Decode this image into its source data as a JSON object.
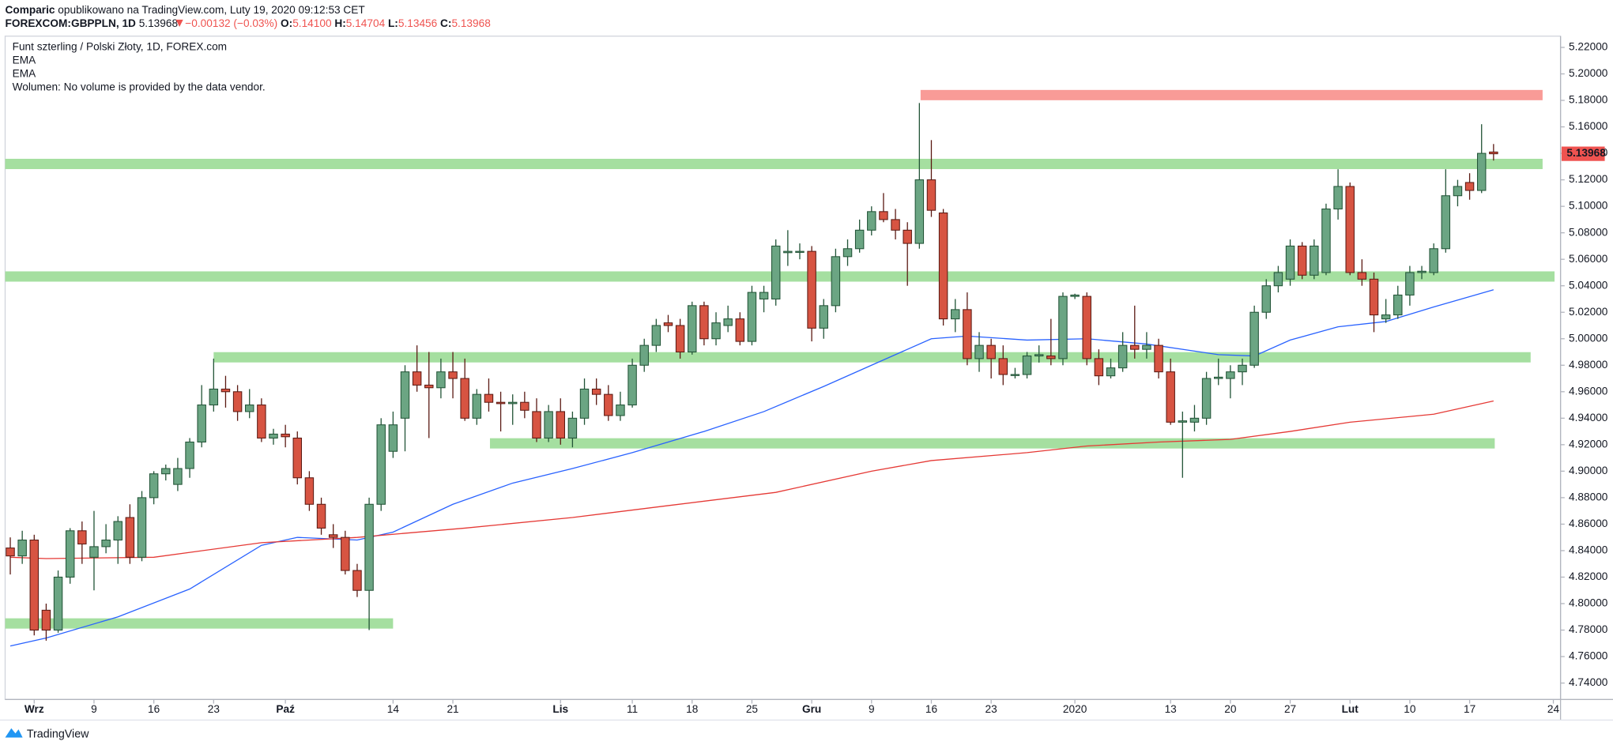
{
  "header": {
    "author": "Comparic",
    "published": "opublikowano na TradingView.com, Luty 19, 2020 09:12:53 CET",
    "symbol": "FOREXCOM:GBPPLN, 1D",
    "last": "5.13968",
    "change": "−0.00132 (−0.03%)",
    "o_label": "O:",
    "o": "5.14100",
    "h_label": "H:",
    "h": "5.14704",
    "l_label": "L:",
    "l": "5.13456",
    "c_label": "C:",
    "c": "5.13968"
  },
  "footer": "TradingView",
  "chart_data": {
    "type": "candlestick",
    "legend_title": "Funt szterling / Polski Złoty, 1D, FOREX.com",
    "volume_note": "Wolumen: No volume is provided by the data vendor.",
    "up_color": "#6ba583",
    "down_color": "#d75442",
    "xlim": [
      -0.43,
      129.6
    ],
    "ylim": [
      4.7276,
      5.2285
    ],
    "yticks": [
      {
        "value": 4.74,
        "label": "4.74000"
      },
      {
        "value": 4.76,
        "label": "4.76000"
      },
      {
        "value": 4.78,
        "label": "4.78000"
      },
      {
        "value": 4.8,
        "label": "4.80000"
      },
      {
        "value": 4.82,
        "label": "4.82000"
      },
      {
        "value": 4.84,
        "label": "4.84000"
      },
      {
        "value": 4.86,
        "label": "4.86000"
      },
      {
        "value": 4.88,
        "label": "4.88000"
      },
      {
        "value": 4.9,
        "label": "4.90000"
      },
      {
        "value": 4.92,
        "label": "4.92000"
      },
      {
        "value": 4.94,
        "label": "4.94000"
      },
      {
        "value": 4.96,
        "label": "4.96000"
      },
      {
        "value": 4.98,
        "label": "4.98000"
      },
      {
        "value": 5.0,
        "label": "5.00000"
      },
      {
        "value": 5.02,
        "label": "5.02000"
      },
      {
        "value": 5.04,
        "label": "5.04000"
      },
      {
        "value": 5.06,
        "label": "5.06000"
      },
      {
        "value": 5.08,
        "label": "5.08000"
      },
      {
        "value": 5.1,
        "label": "5.10000"
      },
      {
        "value": 5.12,
        "label": "5.12000"
      },
      {
        "value": 5.14,
        "label": "5.14000"
      },
      {
        "value": 5.16,
        "label": "5.16000"
      },
      {
        "value": 5.18,
        "label": "5.18000"
      },
      {
        "value": 5.2,
        "label": "5.20000"
      },
      {
        "value": 5.22,
        "label": "5.22000"
      }
    ],
    "xticks": [
      {
        "value": 2,
        "label": "Wrz"
      },
      {
        "value": 7,
        "label": "9"
      },
      {
        "value": 12,
        "label": "16"
      },
      {
        "value": 17,
        "label": "23"
      },
      {
        "value": 23,
        "label": "Paź"
      },
      {
        "value": 32,
        "label": "14"
      },
      {
        "value": 37,
        "label": "21"
      },
      {
        "value": 46,
        "label": "Lis"
      },
      {
        "value": 52,
        "label": "11"
      },
      {
        "value": 57,
        "label": "18"
      },
      {
        "value": 62,
        "label": "25"
      },
      {
        "value": 67,
        "label": "Gru"
      },
      {
        "value": 72,
        "label": "9"
      },
      {
        "value": 77,
        "label": "16"
      },
      {
        "value": 82,
        "label": "23"
      },
      {
        "value": 89,
        "label": "2020"
      },
      {
        "value": 97,
        "label": "13"
      },
      {
        "value": 102,
        "label": "20"
      },
      {
        "value": 107,
        "label": "27"
      },
      {
        "value": 112,
        "label": "Lut"
      },
      {
        "value": 117,
        "label": "10"
      },
      {
        "value": 122,
        "label": "17"
      },
      {
        "value": 129,
        "label": "24"
      }
    ],
    "candles": [
      [
        4.842,
        4.85,
        4.822,
        4.836
      ],
      [
        4.836,
        4.855,
        4.83,
        4.848
      ],
      [
        4.848,
        4.852,
        4.776,
        4.78
      ],
      [
        4.795,
        4.8,
        4.772,
        4.78
      ],
      [
        4.78,
        4.825,
        4.778,
        4.82
      ],
      [
        4.82,
        4.857,
        4.815,
        4.855
      ],
      [
        4.855,
        4.862,
        4.83,
        4.845
      ],
      [
        4.835,
        4.87,
        4.81,
        4.843
      ],
      [
        4.843,
        4.86,
        4.838,
        4.848
      ],
      [
        4.848,
        4.866,
        4.83,
        4.862
      ],
      [
        4.865,
        4.875,
        4.83,
        4.835
      ],
      [
        4.835,
        4.885,
        4.832,
        4.88
      ],
      [
        4.88,
        4.9,
        4.875,
        4.898
      ],
      [
        4.898,
        4.905,
        4.893,
        4.902
      ],
      [
        4.89,
        4.91,
        4.885,
        4.902
      ],
      [
        4.902,
        4.925,
        4.895,
        4.922
      ],
      [
        4.922,
        4.965,
        4.918,
        4.95
      ],
      [
        4.95,
        4.985,
        4.945,
        4.962
      ],
      [
        4.962,
        4.972,
        4.948,
        4.96
      ],
      [
        4.96,
        4.965,
        4.938,
        4.945
      ],
      [
        4.945,
        4.962,
        4.94,
        4.95
      ],
      [
        4.95,
        4.955,
        4.922,
        4.925
      ],
      [
        4.925,
        4.932,
        4.92,
        4.928
      ],
      [
        4.928,
        4.935,
        4.918,
        4.926
      ],
      [
        4.925,
        4.93,
        4.89,
        4.895
      ],
      [
        4.895,
        4.9,
        4.87,
        4.875
      ],
      [
        4.875,
        4.88,
        4.852,
        4.857
      ],
      [
        4.852,
        4.86,
        4.842,
        4.85
      ],
      [
        4.85,
        4.855,
        4.822,
        4.825
      ],
      [
        4.825,
        4.83,
        4.805,
        4.81
      ],
      [
        4.81,
        4.88,
        4.78,
        4.875
      ],
      [
        4.875,
        4.94,
        4.87,
        4.935
      ],
      [
        4.915,
        4.945,
        4.91,
        4.935
      ],
      [
        4.94,
        4.98,
        4.915,
        4.975
      ],
      [
        4.975,
        4.995,
        4.96,
        4.965
      ],
      [
        4.965,
        4.99,
        4.925,
        4.963
      ],
      [
        4.963,
        4.985,
        4.955,
        4.975
      ],
      [
        4.975,
        4.99,
        4.955,
        4.97
      ],
      [
        4.97,
        4.985,
        4.938,
        4.94
      ],
      [
        4.94,
        4.962,
        4.935,
        4.958
      ],
      [
        4.958,
        4.97,
        4.945,
        4.952
      ],
      [
        4.952,
        4.96,
        4.93,
        4.951
      ],
      [
        4.951,
        4.958,
        4.935,
        4.952
      ],
      [
        4.952,
        4.96,
        4.94,
        4.946
      ],
      [
        4.945,
        4.955,
        4.922,
        4.925
      ],
      [
        4.925,
        4.95,
        4.922,
        4.945
      ],
      [
        4.945,
        4.955,
        4.92,
        4.925
      ],
      [
        4.925,
        4.945,
        4.918,
        4.94
      ],
      [
        4.94,
        4.97,
        4.935,
        4.962
      ],
      [
        4.962,
        4.97,
        4.95,
        4.958
      ],
      [
        4.958,
        4.965,
        4.938,
        4.942
      ],
      [
        4.942,
        4.96,
        4.938,
        4.95
      ],
      [
        4.95,
        4.985,
        4.948,
        4.98
      ],
      [
        4.98,
        5.0,
        4.975,
        4.995
      ],
      [
        4.995,
        5.015,
        4.99,
        5.01
      ],
      [
        5.012,
        5.018,
        5.005,
        5.01
      ],
      [
        5.01,
        5.015,
        4.985,
        4.99
      ],
      [
        4.99,
        5.028,
        4.988,
        5.025
      ],
      [
        5.025,
        5.028,
        4.995,
        5.0
      ],
      [
        5.0,
        5.02,
        4.995,
        5.012
      ],
      [
        5.01,
        5.025,
        5.005,
        5.015
      ],
      [
        5.015,
        5.02,
        4.995,
        4.998
      ],
      [
        4.998,
        5.04,
        4.995,
        5.035
      ],
      [
        5.03,
        5.04,
        5.02,
        5.035
      ],
      [
        5.03,
        5.075,
        5.025,
        5.07
      ],
      [
        5.065,
        5.082,
        5.055,
        5.066
      ],
      [
        5.066,
        5.072,
        5.06,
        5.066
      ],
      [
        5.066,
        5.07,
        4.998,
        5.008
      ],
      [
        5.008,
        5.03,
        5.0,
        5.025
      ],
      [
        5.025,
        5.068,
        5.02,
        5.062
      ],
      [
        5.062,
        5.075,
        5.055,
        5.068
      ],
      [
        5.068,
        5.09,
        5.065,
        5.082
      ],
      [
        5.082,
        5.1,
        5.078,
        5.096
      ],
      [
        5.096,
        5.11,
        5.088,
        5.09
      ],
      [
        5.09,
        5.098,
        5.075,
        5.082
      ],
      [
        5.082,
        5.088,
        5.04,
        5.072
      ],
      [
        5.072,
        5.178,
        5.068,
        5.12
      ],
      [
        5.12,
        5.15,
        5.092,
        5.097
      ],
      [
        5.095,
        5.098,
        5.01,
        5.015
      ],
      [
        5.015,
        5.03,
        5.005,
        5.022
      ],
      [
        5.022,
        5.035,
        4.98,
        4.985
      ],
      [
        4.985,
        5.005,
        4.975,
        4.995
      ],
      [
        4.995,
        5.0,
        4.97,
        4.985
      ],
      [
        4.985,
        4.995,
        4.965,
        4.973
      ],
      [
        4.973,
        4.978,
        4.97,
        4.973
      ],
      [
        4.973,
        4.99,
        4.97,
        4.987
      ],
      [
        4.987,
        4.995,
        4.982,
        4.988
      ],
      [
        4.987,
        5.015,
        4.98,
        4.985
      ],
      [
        4.985,
        5.035,
        4.98,
        5.032
      ],
      [
        5.032,
        5.034,
        5.03,
        5.033
      ],
      [
        5.032,
        5.035,
        4.98,
        4.985
      ],
      [
        4.985,
        4.992,
        4.965,
        4.972
      ],
      [
        4.972,
        4.985,
        4.97,
        4.978
      ],
      [
        4.978,
        5.005,
        4.975,
        4.995
      ],
      [
        4.995,
        5.025,
        4.985,
        4.992
      ],
      [
        4.992,
        5.005,
        4.985,
        4.995
      ],
      [
        4.995,
        5.0,
        4.97,
        4.975
      ],
      [
        4.975,
        4.985,
        4.935,
        4.937
      ],
      [
        4.937,
        4.945,
        4.895,
        4.938
      ],
      [
        4.937,
        4.95,
        4.93,
        4.94
      ],
      [
        4.94,
        4.975,
        4.935,
        4.97
      ],
      [
        4.97,
        4.985,
        4.965,
        4.971
      ],
      [
        4.97,
        4.98,
        4.955,
        4.975
      ],
      [
        4.975,
        4.985,
        4.965,
        4.98
      ],
      [
        4.98,
        5.025,
        4.978,
        5.02
      ],
      [
        5.02,
        5.045,
        5.015,
        5.04
      ],
      [
        5.04,
        5.055,
        5.035,
        5.05
      ],
      [
        5.045,
        5.075,
        5.04,
        5.07
      ],
      [
        5.07,
        5.073,
        5.045,
        5.048
      ],
      [
        5.048,
        5.075,
        5.045,
        5.07
      ],
      [
        5.05,
        5.102,
        5.048,
        5.098
      ],
      [
        5.098,
        5.128,
        5.09,
        5.115
      ],
      [
        5.115,
        5.118,
        5.048,
        5.05
      ],
      [
        5.05,
        5.06,
        5.04,
        5.045
      ],
      [
        5.045,
        5.05,
        5.005,
        5.018
      ],
      [
        5.015,
        5.03,
        5.012,
        5.018
      ],
      [
        5.018,
        5.04,
        5.015,
        5.033
      ],
      [
        5.033,
        5.055,
        5.025,
        5.05
      ],
      [
        5.05,
        5.055,
        5.045,
        5.051
      ],
      [
        5.05,
        5.072,
        5.048,
        5.068
      ],
      [
        5.068,
        5.128,
        5.065,
        5.108
      ],
      [
        5.108,
        5.12,
        5.1,
        5.115
      ],
      [
        5.118,
        5.125,
        5.105,
        5.112
      ],
      [
        5.112,
        5.162,
        5.11,
        5.14
      ],
      [
        5.141,
        5.14704,
        5.13456,
        5.13968
      ]
    ],
    "ema": [
      {
        "name": "EMA",
        "color": "#2962ff",
        "x": [
          0,
          3,
          9,
          15,
          21,
          24,
          29,
          32,
          37,
          42,
          47,
          52,
          58,
          63,
          68,
          72,
          77,
          80,
          85,
          90,
          95,
          101,
          104,
          107,
          111,
          115,
          119,
          124
        ],
        "values": [
          4.768,
          4.774,
          4.79,
          4.811,
          4.844,
          4.85,
          4.848,
          4.854,
          4.875,
          4.891,
          4.902,
          4.914,
          4.93,
          4.945,
          4.964,
          4.98,
          5.0,
          5.002,
          4.999,
          5.0,
          4.996,
          4.988,
          4.987,
          4.999,
          5.009,
          5.013,
          5.024,
          5.037
        ]
      },
      {
        "name": "EMA",
        "color": "#e53935",
        "x": [
          0,
          3,
          12,
          21,
          29,
          38,
          47,
          55,
          64,
          72,
          77,
          85,
          90,
          96,
          102,
          107,
          112,
          119,
          124
        ],
        "values": [
          4.835,
          4.834,
          4.835,
          4.846,
          4.85,
          4.857,
          4.865,
          4.874,
          4.884,
          4.9,
          4.908,
          4.914,
          4.919,
          4.922,
          4.924,
          4.93,
          4.937,
          4.943,
          4.953
        ]
      }
    ],
    "zones": [
      {
        "price": 5.184,
        "from": 76.1,
        "to": 128.1,
        "color": "#f99b97"
      },
      {
        "price": 5.132,
        "from": -0.43,
        "to": 128.1,
        "color": "#a5dfa0"
      },
      {
        "price": 5.047,
        "from": -0.43,
        "to": 129.1,
        "color": "#a5dfa0"
      },
      {
        "price": 4.986,
        "from": 17.0,
        "to": 127.1,
        "color": "#a5dfa0"
      },
      {
        "price": 4.921,
        "from": 40.1,
        "to": 124.1,
        "color": "#a5dfa0"
      },
      {
        "price": 4.785,
        "from": -0.43,
        "to": 32.0,
        "color": "#a5dfa0"
      }
    ]
  }
}
